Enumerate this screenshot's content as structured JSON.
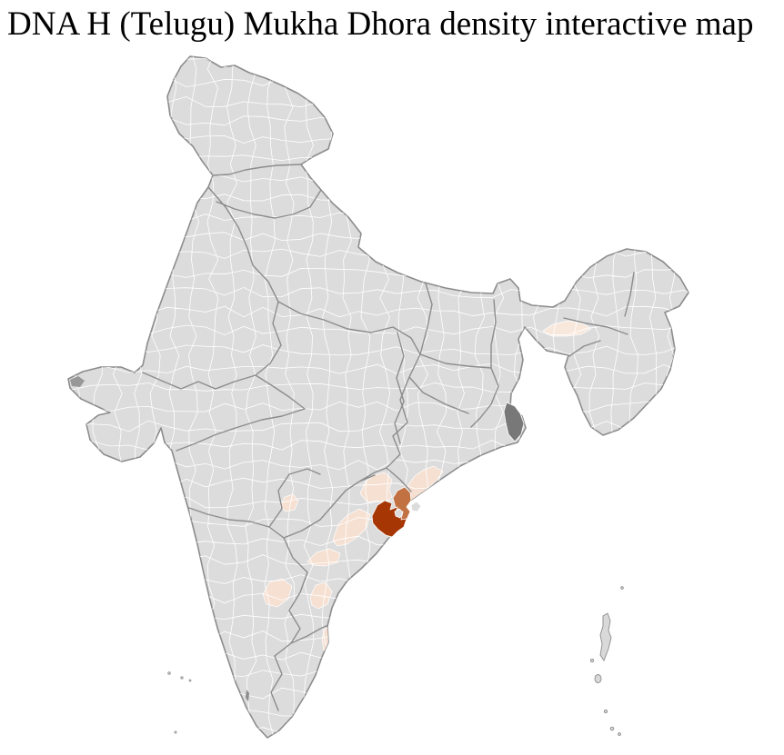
{
  "title": {
    "text": "DNA H (Telugu) Mukha Dhora density interactive map",
    "color": "#000000"
  },
  "map": {
    "description": "India district-level choropleth, no labels or legend visible",
    "colors": {
      "background": "#ffffff",
      "base_district_fill": "#dcdcdc",
      "district_border": "#ffffff",
      "state_border": "#8c8c8c",
      "outline": "#8c8c8c",
      "island_fill": "#d9d9d9",
      "density_highest": "#a63603",
      "density_high": "#c17142",
      "density_low": "#f6e0d2",
      "density_very_low": "#f8e8dc",
      "metro_dark_gray": "#787878",
      "terrain_dark_gray": "#989898"
    },
    "regions": [
      {
        "id": "district-darkest",
        "density_level": "highest",
        "color": "#a63603",
        "location": "north-coastal-andhra"
      },
      {
        "id": "district-dark-orange",
        "density_level": "high",
        "color": "#c17142",
        "location": "coast-northeast-of-darkest"
      },
      {
        "id": "district-light-coastal-northeast",
        "density_level": "low",
        "color": "#f6e0d2",
        "location": "coastal-belt-northeast"
      },
      {
        "id": "district-light-upland-north",
        "density_level": "low",
        "color": "#f6e0d2",
        "location": "upland-north-of-darkest"
      },
      {
        "id": "district-light-southwest",
        "density_level": "low",
        "color": "#f6e0d2",
        "location": "river-delta-southwest"
      },
      {
        "id": "district-light-inland-isolated",
        "density_level": "low",
        "color": "#f6e0d2",
        "location": "inland-west-isolated"
      },
      {
        "id": "district-light-coastal-south",
        "density_level": "low",
        "color": "#f6e0d2",
        "location": "coastal-south"
      },
      {
        "id": "district-light-interior-southwest",
        "density_level": "low",
        "color": "#f6e0d2",
        "location": "interior-southwest"
      },
      {
        "id": "district-light-interior-south",
        "density_level": "low",
        "color": "#f6e0d2",
        "location": "interior-south"
      },
      {
        "id": "district-light-far-south-coast-strip",
        "density_level": "low",
        "color": "#f6e0d2",
        "location": "far-south-east-coast-strip"
      },
      {
        "id": "district-very-light-northeast-valley",
        "density_level": "very-low",
        "color": "#f8e8dc",
        "location": "northeast-river-valley"
      },
      {
        "id": "district-dark-gray-delta",
        "density_level": "n/a",
        "color": "#787878",
        "location": "ganges-delta-metro"
      }
    ]
  }
}
